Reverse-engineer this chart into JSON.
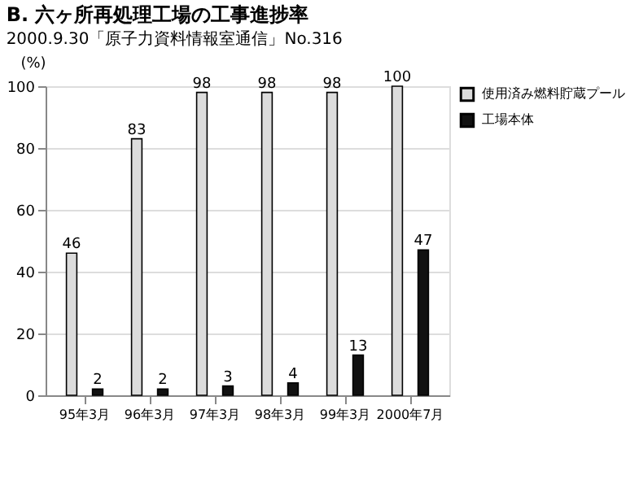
{
  "chart_data": {
    "type": "bar",
    "title": "B. 六ヶ所再処理工場の工事進捗率",
    "ylabel": "(%)",
    "categories": [
      "95年3月",
      "96年3月",
      "97年3月",
      "98年3月",
      "99年3月",
      "2000年7月"
    ],
    "series": [
      {
        "name": "使用済み燃料貯蔵プール",
        "color": "#dcdcdc",
        "values": [
          46,
          83,
          98,
          98,
          98,
          100
        ]
      },
      {
        "name": "工場本体",
        "color": "#111111",
        "values": [
          2,
          2,
          3,
          4,
          13,
          47
        ]
      }
    ],
    "ylim": [
      0,
      100
    ],
    "yticks": [
      0,
      20,
      40,
      60,
      80,
      100
    ],
    "grid": "y",
    "legend": "right",
    "data_labels": true,
    "annotations": [
      "2000.9.30「原子力資料情報室通信」No.316"
    ]
  }
}
